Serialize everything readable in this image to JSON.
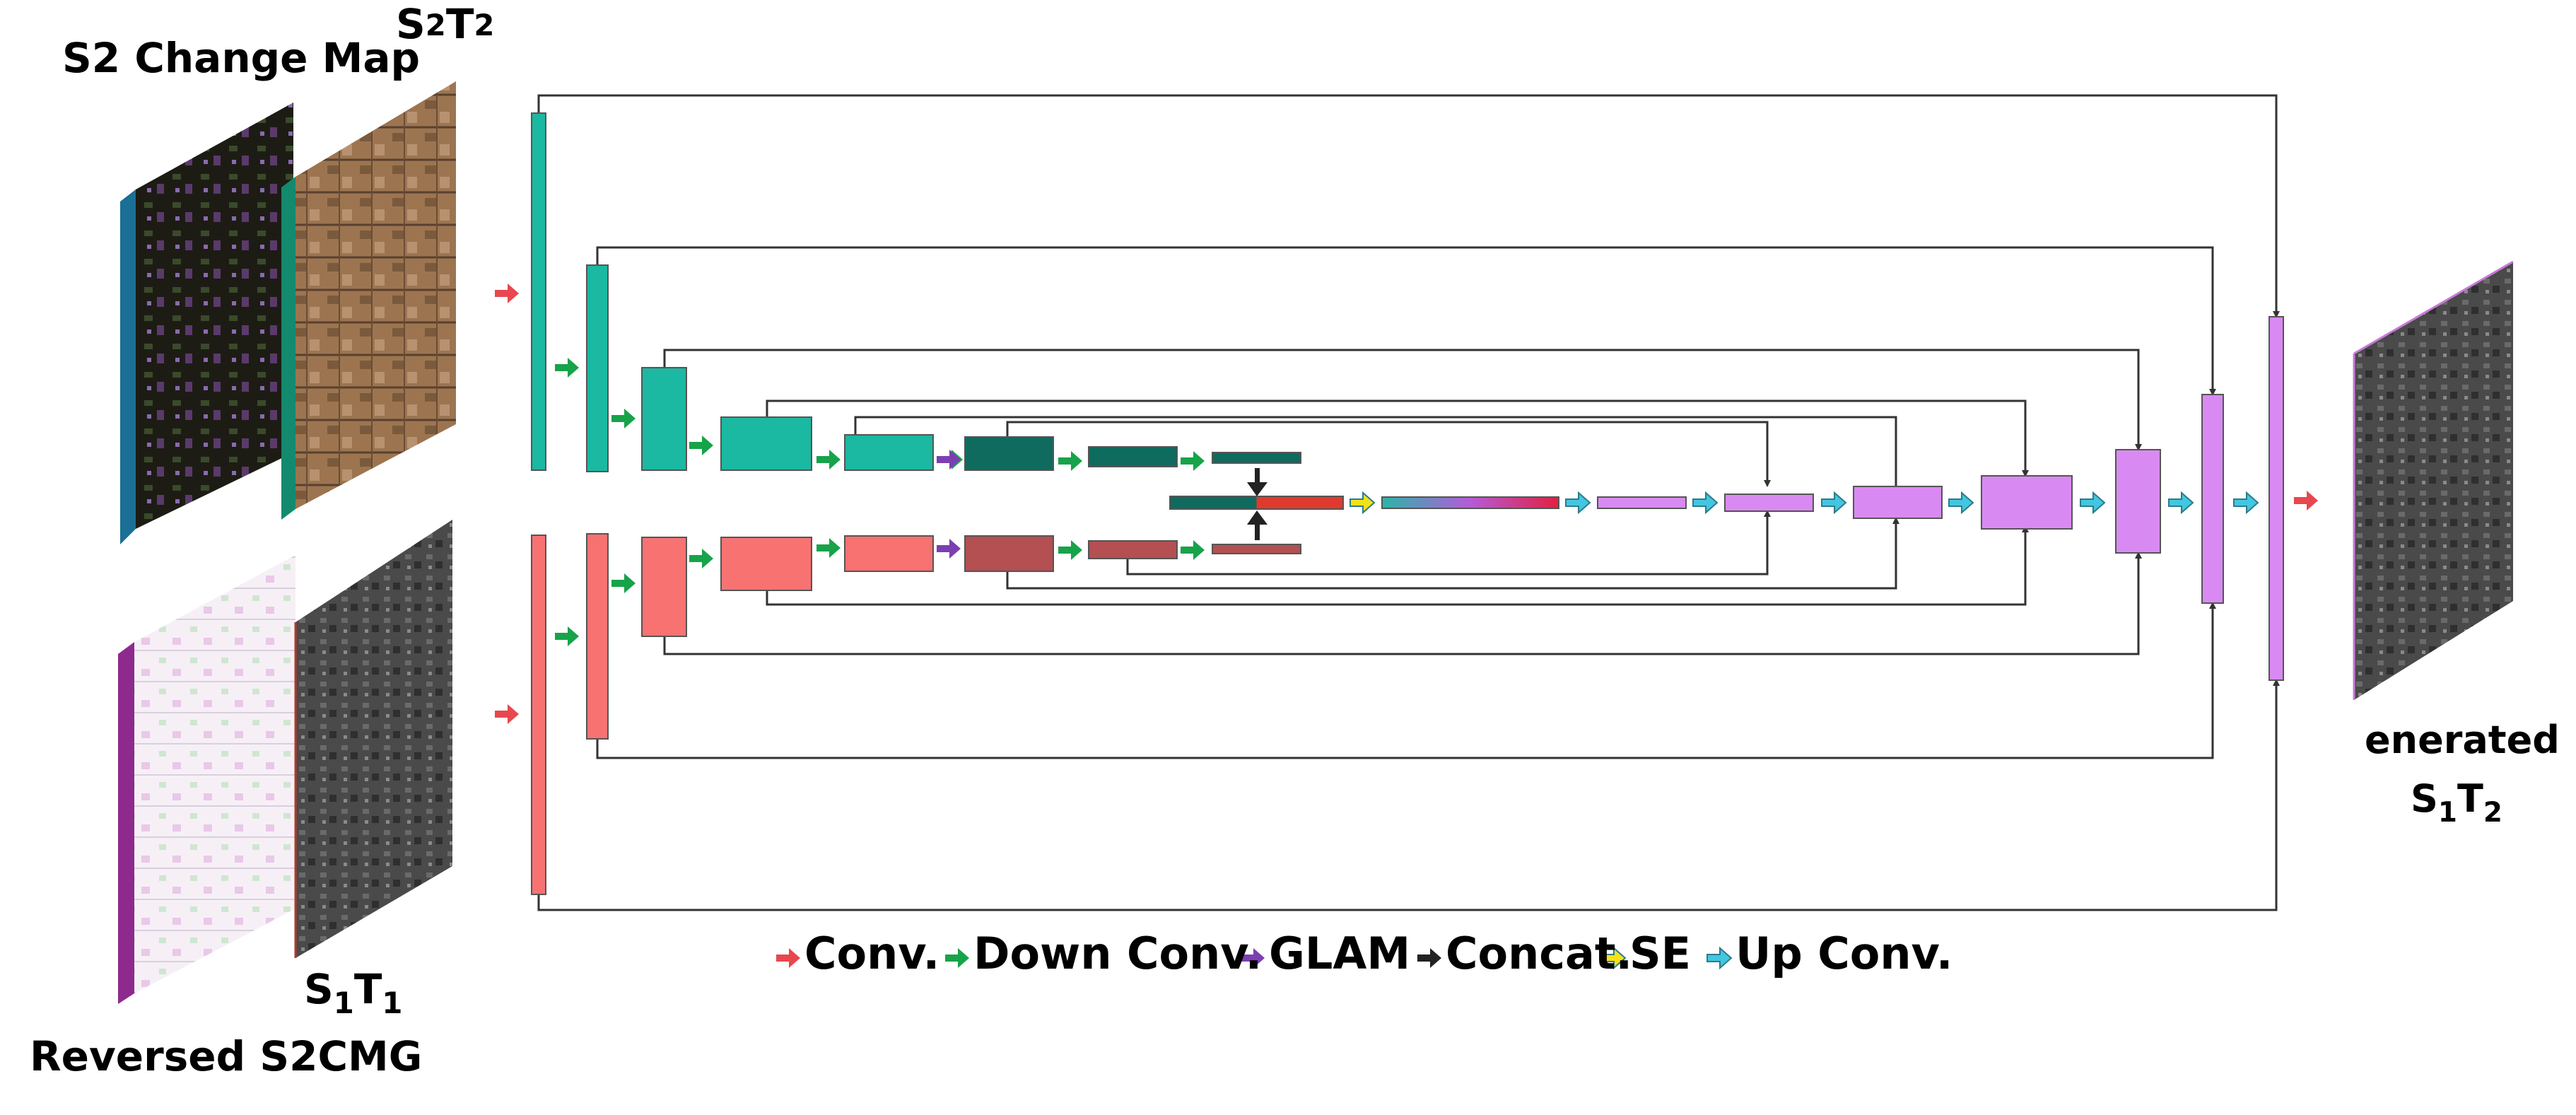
{
  "labels": {
    "s2_change_map": "S2 Change Map",
    "s2t2": {
      "s1": "S",
      "s1sub": "2",
      "s2": "T",
      "s2sub": "2"
    },
    "s1t1": {
      "s1": "S",
      "s1sub": "1",
      "s2": "T",
      "s2sub": "1"
    },
    "reversed": "Reversed S2CMG",
    "generated": "enerated",
    "s1t2": {
      "s1": "S",
      "s1sub": "1",
      "s2": "T",
      "s2sub": "2"
    }
  },
  "legend": [
    {
      "label": "Conv.",
      "color": "#e8474f"
    },
    {
      "label": "Down Conv.",
      "color": "#17a34a"
    },
    {
      "label": "GLAM",
      "color": "#7b3fb2"
    },
    {
      "label": "Concat.",
      "color": "#222222"
    },
    {
      "label": "SE",
      "color": "#f5e11a"
    },
    {
      "label": "Up Conv.",
      "color": "#43c6e0"
    }
  ],
  "colors": {
    "teal": "#1bb8a2",
    "teal_dark": "#0e6b5e",
    "salmon": "#f87272",
    "salmon_dark": "#b44f52",
    "violet": "#d98af2",
    "line": "#333333"
  }
}
